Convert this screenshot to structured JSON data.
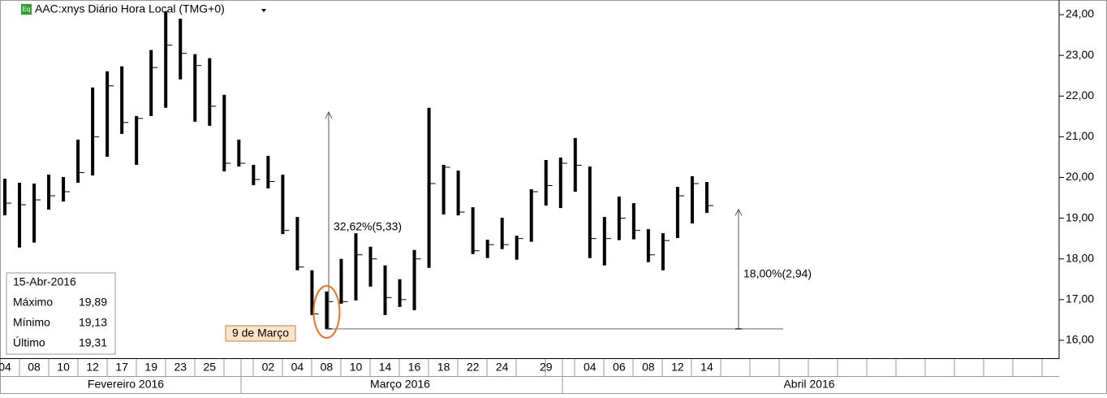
{
  "chart_data": {
    "type": "ohlc",
    "title": "AAC:xnys Diário Hora Local (TMG+0)",
    "icon": "Eq",
    "color": "#000000",
    "categories": [
      "04",
      null,
      "08",
      null,
      "10",
      null,
      "12",
      null,
      "17",
      null,
      "19",
      null,
      "23",
      null,
      "25",
      null,
      null,
      null,
      "02",
      null,
      "04",
      null,
      "08",
      null,
      "10",
      null,
      "14",
      null,
      "16",
      null,
      "18",
      null,
      "22",
      null,
      "24",
      null,
      null,
      "29",
      null,
      null,
      "04",
      null,
      "06",
      null,
      "08",
      null,
      "12",
      null,
      "14"
    ],
    "high": [
      19.97,
      19.87,
      19.85,
      20.07,
      20.01,
      20.93,
      22.21,
      22.61,
      22.73,
      21.51,
      23.13,
      24.08,
      23.9,
      23.03,
      22.93,
      22.03,
      20.93,
      20.31,
      20.53,
      20.07,
      19.03,
      17.72,
      17.2,
      18.0,
      18.63,
      18.3,
      17.84,
      17.5,
      18.22,
      21.71,
      20.31,
      20.17,
      19.27,
      18.47,
      19.01,
      18.57,
      19.71,
      20.43,
      20.49,
      20.97,
      20.27,
      19.03,
      19.53,
      19.37,
      18.73,
      18.63,
      19.77,
      20.03,
      19.89
    ],
    "low": [
      19.07,
      18.28,
      18.4,
      19.21,
      19.41,
      19.87,
      20.05,
      20.51,
      21.07,
      20.31,
      21.51,
      21.71,
      22.41,
      21.37,
      21.27,
      20.15,
      20.27,
      19.81,
      19.73,
      18.61,
      17.72,
      16.62,
      16.28,
      16.9,
      16.98,
      17.32,
      16.62,
      16.82,
      16.74,
      17.78,
      19.09,
      19.07,
      18.12,
      18.02,
      18.24,
      17.98,
      18.42,
      19.31,
      19.25,
      19.65,
      18.02,
      17.84,
      18.46,
      18.48,
      17.92,
      17.72,
      18.51,
      18.87,
      19.13
    ],
    "close": [
      19.37,
      19.33,
      19.45,
      19.55,
      19.65,
      20.12,
      21.0,
      22.25,
      21.35,
      21.45,
      22.7,
      23.25,
      23.05,
      22.75,
      21.75,
      20.35,
      20.35,
      19.95,
      19.9,
      18.7,
      17.8,
      16.65,
      16.95,
      16.95,
      18.1,
      18.0,
      17.05,
      17.0,
      18.0,
      19.85,
      20.25,
      19.15,
      18.2,
      18.35,
      18.35,
      18.5,
      19.65,
      19.8,
      20.35,
      20.3,
      18.5,
      18.5,
      19.0,
      18.7,
      18.1,
      18.45,
      19.55,
      19.85,
      19.31
    ],
    "ylim": [
      15.62,
      24.36
    ],
    "yticks": [
      {
        "value": 16,
        "label": "16,00"
      },
      {
        "value": 17,
        "label": "17,00"
      },
      {
        "value": 18,
        "label": "18,00"
      },
      {
        "value": 19,
        "label": "19,00"
      },
      {
        "value": 20,
        "label": "20,00"
      },
      {
        "value": 21,
        "label": "21,00"
      },
      {
        "value": 22,
        "label": "22,00"
      },
      {
        "value": 23,
        "label": "23,00"
      },
      {
        "value": 24,
        "label": "24,00"
      }
    ],
    "months": [
      "Fevereiro 2016",
      "Março 2016",
      "Abril 2016"
    ],
    "measures": [
      {
        "from": 16.28,
        "to": 21.61,
        "label": "32,62%(5,33)"
      },
      {
        "from": 16.28,
        "to": 19.22,
        "label": "18,00%(2,94)"
      }
    ],
    "date_marker": "9 de Março",
    "info_box": {
      "date": "15-Abr-2016",
      "rows": [
        [
          "Máximo",
          "19,89"
        ],
        [
          "Mínimo",
          "19,13"
        ],
        [
          "Último",
          "19,31"
        ]
      ]
    }
  }
}
